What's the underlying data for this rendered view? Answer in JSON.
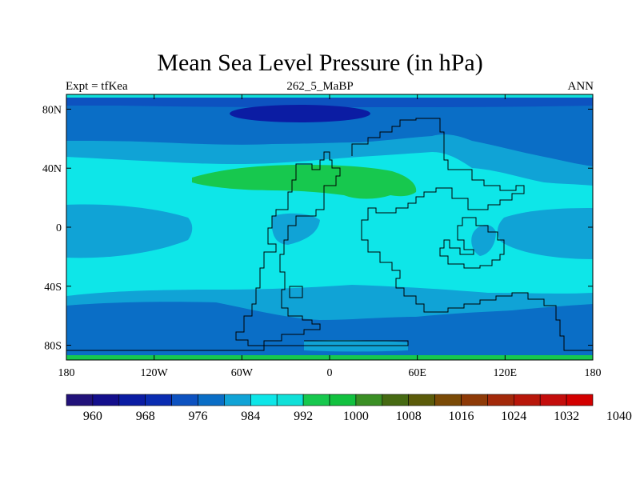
{
  "title": "Mean Sea Level Pressure (in hPa)",
  "subtitle_left": "Expt = tfKea",
  "subtitle_center": "262_5_MaBP",
  "subtitle_right": "ANN",
  "map": {
    "projection": "cylindrical-equidistant",
    "lon_range": [
      -180,
      180
    ],
    "lat_range": [
      -90,
      90
    ],
    "x_ticks": [
      {
        "lon": -180,
        "label": "180"
      },
      {
        "lon": -120,
        "label": "120W"
      },
      {
        "lon": -60,
        "label": "60W"
      },
      {
        "lon": 0,
        "label": "0"
      },
      {
        "lon": 60,
        "label": "60E"
      },
      {
        "lon": 120,
        "label": "120E"
      },
      {
        "lon": 180,
        "label": "180"
      }
    ],
    "y_ticks": [
      {
        "lat": 80,
        "label": "80N"
      },
      {
        "lat": 40,
        "label": "40N"
      },
      {
        "lat": 0,
        "label": "0"
      },
      {
        "lat": -40,
        "label": "40S"
      },
      {
        "lat": -80,
        "label": "80S"
      }
    ]
  },
  "colorbar": {
    "colors": [
      "#22127a",
      "#140f8c",
      "#0b1ca3",
      "#0a2cb1",
      "#0d52c0",
      "#0a6ec6",
      "#10a3d6",
      "#0ee6e8",
      "#10e0d8",
      "#17c84e",
      "#12c13f",
      "#3a8f24",
      "#466a12",
      "#5b5b0a",
      "#7a4a06",
      "#8e3a07",
      "#a3290a",
      "#b8170a",
      "#c40d0c",
      "#d30000"
    ],
    "labels": [
      {
        "value": 960,
        "label": "960"
      },
      {
        "value": 968,
        "label": "968"
      },
      {
        "value": 976,
        "label": "976"
      },
      {
        "value": 984,
        "label": "984"
      },
      {
        "value": 992,
        "label": "992"
      },
      {
        "value": 1000,
        "label": "1000"
      },
      {
        "value": 1008,
        "label": "1008"
      },
      {
        "value": 1016,
        "label": "1016"
      },
      {
        "value": 1024,
        "label": "1024"
      },
      {
        "value": 1032,
        "label": "1032"
      },
      {
        "value": 1040,
        "label": "1040"
      }
    ]
  }
}
